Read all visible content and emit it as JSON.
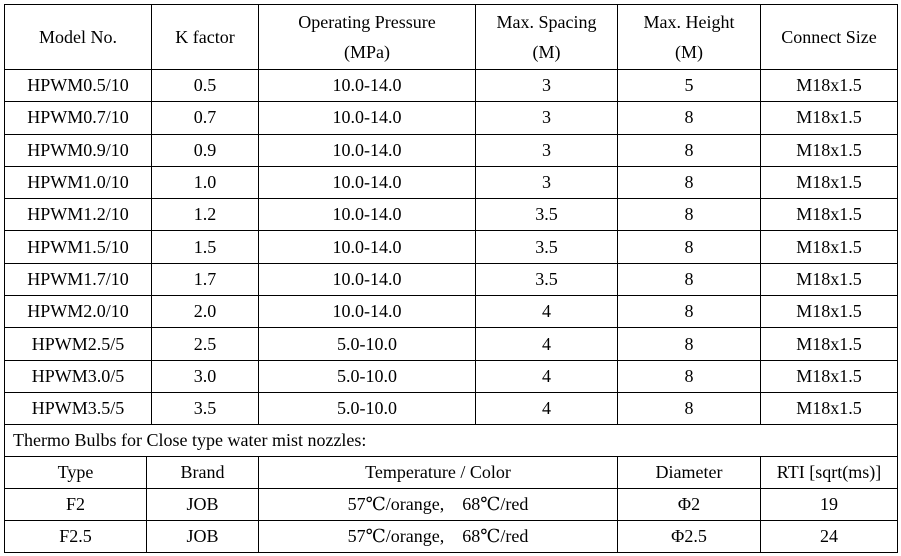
{
  "nozzle_table": {
    "headers": {
      "model": "Model No.",
      "k_factor": "K factor",
      "pressure_line1": "Operating Pressure",
      "pressure_line2": "(MPa)",
      "spacing_line1": "Max. Spacing",
      "spacing_line2": "(M)",
      "height_line1": "Max. Height",
      "height_line2": "(M)",
      "connect": "Connect Size"
    },
    "rows": [
      {
        "model": "HPWM0.5/10",
        "k": "0.5",
        "pressure": "10.0-14.0",
        "spacing": "3",
        "height": "5",
        "connect": "M18x1.5"
      },
      {
        "model": "HPWM0.7/10",
        "k": "0.7",
        "pressure": "10.0-14.0",
        "spacing": "3",
        "height": "8",
        "connect": "M18x1.5"
      },
      {
        "model": "HPWM0.9/10",
        "k": "0.9",
        "pressure": "10.0-14.0",
        "spacing": "3",
        "height": "8",
        "connect": "M18x1.5"
      },
      {
        "model": "HPWM1.0/10",
        "k": "1.0",
        "pressure": "10.0-14.0",
        "spacing": "3",
        "height": "8",
        "connect": "M18x1.5"
      },
      {
        "model": "HPWM1.2/10",
        "k": "1.2",
        "pressure": "10.0-14.0",
        "spacing": "3.5",
        "height": "8",
        "connect": "M18x1.5"
      },
      {
        "model": "HPWM1.5/10",
        "k": "1.5",
        "pressure": "10.0-14.0",
        "spacing": "3.5",
        "height": "8",
        "connect": "M18x1.5"
      },
      {
        "model": "HPWM1.7/10",
        "k": "1.7",
        "pressure": "10.0-14.0",
        "spacing": "3.5",
        "height": "8",
        "connect": "M18x1.5"
      },
      {
        "model": "HPWM2.0/10",
        "k": "2.0",
        "pressure": "10.0-14.0",
        "spacing": "4",
        "height": "8",
        "connect": "M18x1.5"
      },
      {
        "model": "HPWM2.5/5",
        "k": "2.5",
        "pressure": "5.0-10.0",
        "spacing": "4",
        "height": "8",
        "connect": "M18x1.5"
      },
      {
        "model": "HPWM3.0/5",
        "k": "3.0",
        "pressure": "5.0-10.0",
        "spacing": "4",
        "height": "8",
        "connect": "M18x1.5"
      },
      {
        "model": "HPWM3.5/5",
        "k": "3.5",
        "pressure": "5.0-10.0",
        "spacing": "4",
        "height": "8",
        "connect": "M18x1.5"
      }
    ]
  },
  "bulb_section": {
    "title": "Thermo Bulbs for Close type water mist nozzles:",
    "headers": {
      "type": "Type",
      "brand": "Brand",
      "temp_color": "Temperature / Color",
      "diameter": "Diameter",
      "rti": "RTI [sqrt(ms)]"
    },
    "rows": [
      {
        "type": "F2",
        "brand": "JOB",
        "temp_color": "57℃/orange,    68℃/red",
        "diameter": "Φ2",
        "rti": "19"
      },
      {
        "type": "F2.5",
        "brand": "JOB",
        "temp_color": "57℃/orange,    68℃/red",
        "diameter": "Φ2.5",
        "rti": "24"
      }
    ]
  }
}
